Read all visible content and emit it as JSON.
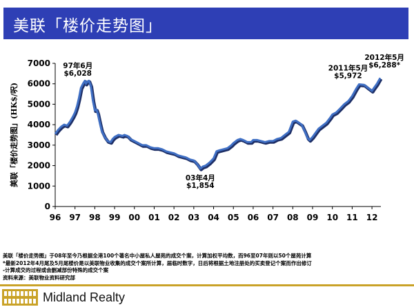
{
  "header": {
    "title": "美联「楼价走势图」"
  },
  "chart_data": {
    "type": "line",
    "ylabel": "美联「楼价走势图」(HK$/呎)",
    "ylim": [
      0,
      7000
    ],
    "yticks": [
      0,
      1000,
      2000,
      3000,
      4000,
      5000,
      6000,
      7000
    ],
    "xlim": [
      1996,
      2012.45
    ],
    "xtick_labels": [
      "96",
      "97",
      "98",
      "99",
      "00",
      "01",
      "02",
      "03",
      "04",
      "05",
      "06",
      "07",
      "08",
      "09",
      "10",
      "11",
      "12"
    ],
    "series": [
      {
        "x": [
          1996.0,
          1996.15,
          1996.3,
          1996.45,
          1996.6,
          1996.75,
          1996.9,
          1997.0,
          1997.1,
          1997.2,
          1997.3,
          1997.42,
          1997.5,
          1997.55,
          1997.62,
          1997.7,
          1997.8,
          1997.9,
          1998.0,
          1998.08,
          1998.15,
          1998.25,
          1998.35,
          1998.5,
          1998.65,
          1998.8,
          1998.9,
          1999.0,
          1999.2,
          1999.4,
          1999.5,
          1999.65,
          1999.8,
          2000.0,
          2000.2,
          2000.4,
          2000.6,
          2000.8,
          2001.0,
          2001.2,
          2001.4,
          2001.6,
          2001.8,
          2002.0,
          2002.2,
          2002.4,
          2002.6,
          2002.8,
          2003.0,
          2003.15,
          2003.33,
          2003.45,
          2003.6,
          2003.8,
          2004.0,
          2004.15,
          2004.3,
          2004.5,
          2004.7,
          2004.9,
          2005.0,
          2005.2,
          2005.35,
          2005.5,
          2005.7,
          2005.9,
          2006.0,
          2006.2,
          2006.4,
          2006.6,
          2006.8,
          2007.0,
          2007.2,
          2007.4,
          2007.6,
          2007.8,
          2007.9,
          2008.0,
          2008.15,
          2008.3,
          2008.45,
          2008.6,
          2008.75,
          2008.85,
          2009.0,
          2009.15,
          2009.3,
          2009.5,
          2009.7,
          2009.9,
          2010.0,
          2010.2,
          2010.4,
          2010.6,
          2010.8,
          2011.0,
          2011.2,
          2011.35,
          2011.6,
          2011.8,
          2012.0,
          2012.1,
          2012.25,
          2012.42
        ],
        "y": [
          3550,
          3750,
          3900,
          4000,
          3950,
          4150,
          4400,
          4600,
          4900,
          5300,
          5800,
          6028,
          6150,
          6000,
          6100,
          6150,
          5900,
          5200,
          4700,
          4750,
          4550,
          4100,
          3700,
          3400,
          3200,
          3150,
          3300,
          3400,
          3500,
          3450,
          3500,
          3450,
          3300,
          3200,
          3100,
          3000,
          3000,
          2900,
          2850,
          2850,
          2800,
          2700,
          2650,
          2600,
          2500,
          2450,
          2400,
          2300,
          2250,
          2100,
          1854,
          1950,
          2000,
          2150,
          2350,
          2700,
          2750,
          2800,
          2850,
          3000,
          3100,
          3250,
          3300,
          3250,
          3150,
          3150,
          3250,
          3250,
          3200,
          3150,
          3200,
          3200,
          3300,
          3350,
          3500,
          3650,
          3900,
          4150,
          4200,
          4100,
          4000,
          3700,
          3350,
          3250,
          3400,
          3600,
          3800,
          3950,
          4100,
          4350,
          4500,
          4600,
          4800,
          5000,
          5150,
          5400,
          5750,
          5972,
          5950,
          5800,
          5650,
          5800,
          6000,
          6288
        ]
      }
    ],
    "annotations": [
      {
        "x": 1997.42,
        "y": 6028,
        "label": "97年6月",
        "value_label": "$6,028"
      },
      {
        "x": 2003.33,
        "y": 1854,
        "label": "03年4月",
        "value_label": "$1,854"
      },
      {
        "x": 2011.35,
        "y": 5972,
        "label": "2011年5月",
        "value_label": "$5,972"
      },
      {
        "x": 2012.42,
        "y": 6288,
        "label": "2012年5月",
        "value_label": "$6,288*"
      }
    ],
    "colors": {
      "line": "#3f6fc4",
      "shadow": "#1e2f66"
    },
    "grid": false
  },
  "notes": [
    "美联「楼价走势图」于08年至今乃根据全港100个著名中小屋私人屋苑的成交个案，计算加权平均数，而96至07年则以50个屋苑计算",
    "*最新2012年4月尾及5月尾楼价是以美联物业收集的成交个案所计算，届临时数字，日后将根据土地注册处的买卖登记个案而作出修订",
    "-计算成交的过程或会删减部份特殊的成交个案",
    "资料来源：美联物业资料研究部"
  ],
  "footer": {
    "company": "Midland Realty"
  },
  "colors": {
    "banner": "#2e3fb5",
    "gold": "#c9a227"
  }
}
